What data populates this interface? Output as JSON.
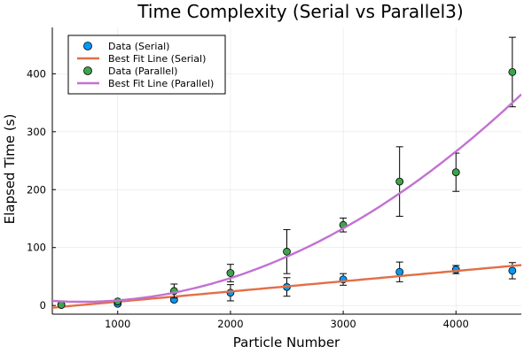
{
  "chart_data": {
    "type": "scatter",
    "title": "Time Complexity (Serial vs Parallel3)",
    "xlabel": "Particle Number",
    "ylabel": "Elapsed Time (s)",
    "xlim": [
      420,
      4580
    ],
    "ylim": [
      -15,
      480
    ],
    "x_ticks": [
      1000,
      2000,
      3000,
      4000
    ],
    "y_ticks": [
      0,
      100,
      200,
      300,
      400
    ],
    "grid": true,
    "legend_position": "top-left",
    "series": [
      {
        "name": "Data (Serial)",
        "kind": "points",
        "color": "#009af9",
        "x": [
          500,
          1000,
          1500,
          2000,
          2500,
          3000,
          3500,
          4000,
          4500
        ],
        "y": [
          1,
          3,
          10,
          22,
          32,
          45,
          58,
          62,
          60
        ],
        "err": [
          1,
          2,
          3,
          14,
          16,
          10,
          17,
          7,
          14
        ]
      },
      {
        "name": "Best Fit Line (Serial)",
        "kind": "line",
        "color": "#e26f46",
        "fit": {
          "form": "linear",
          "a": 0.01768,
          "b": -11.2
        }
      },
      {
        "name": "Data (Parallel)",
        "kind": "points",
        "color": "#3da44d",
        "x": [
          500,
          1000,
          1500,
          2000,
          2500,
          3000,
          3500,
          4000,
          4500
        ],
        "y": [
          1,
          7,
          25,
          56,
          93,
          139,
          214,
          230,
          403
        ],
        "err": [
          1,
          2,
          12,
          15,
          38,
          12,
          60,
          33,
          60
        ]
      },
      {
        "name": "Best Fit Line (Parallel)",
        "kind": "line",
        "color": "#c271d2",
        "fit": {
          "form": "quadratic",
          "a": 2.356e-05,
          "b": -0.0321,
          "c": 17.3
        }
      }
    ]
  }
}
